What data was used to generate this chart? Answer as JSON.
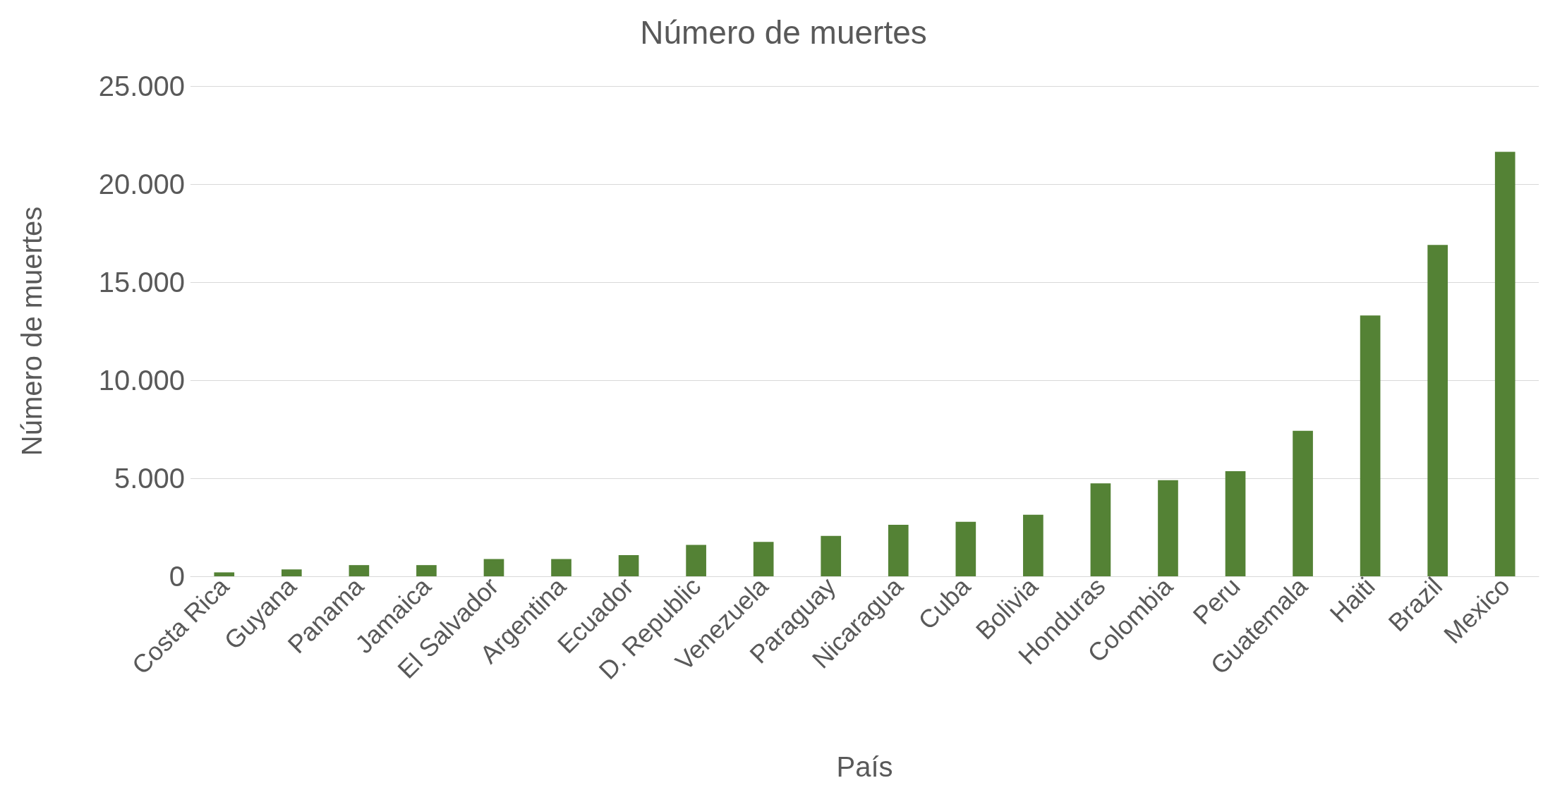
{
  "chart_data": {
    "type": "bar",
    "title": "Número de muertes",
    "xlabel": "País",
    "ylabel": "Número de muertes",
    "categories": [
      "Costa Rica",
      "Guyana",
      "Panama",
      "Jamaica",
      "El Salvador",
      "Argentina",
      "Ecuador",
      "D. Republic",
      "Venezuela",
      "Paraguay",
      "Nicaragua",
      "Cuba",
      "Bolivia",
      "Honduras",
      "Colombia",
      "Peru",
      "Guatemala",
      "Haiti",
      "Brazil",
      "Mexico"
    ],
    "values": [
      200,
      350,
      570,
      570,
      880,
      880,
      1080,
      1600,
      1750,
      2060,
      2630,
      2780,
      3140,
      4740,
      4900,
      5360,
      7420,
      13300,
      16900,
      21650
    ],
    "color": "#548235",
    "ylim": [
      0,
      25000
    ],
    "yticks": [
      {
        "value": 0,
        "label": "0"
      },
      {
        "value": 5000,
        "label": "5.000"
      },
      {
        "value": 10000,
        "label": "10.000"
      },
      {
        "value": 15000,
        "label": "15.000"
      },
      {
        "value": 20000,
        "label": "20.000"
      },
      {
        "value": 25000,
        "label": "25.000"
      }
    ],
    "grid": "y"
  }
}
